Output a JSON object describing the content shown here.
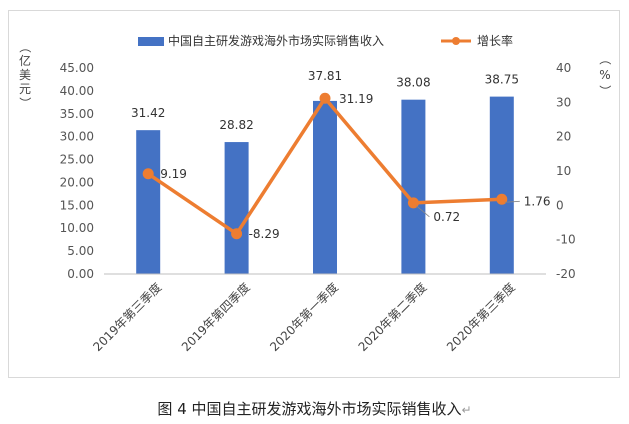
{
  "chart_data": {
    "type": "bar+line",
    "categories": [
      "2019年第三季度",
      "2019年第四季度",
      "2020年第一季度",
      "2020年第二季度",
      "2020年第三季度"
    ],
    "series": [
      {
        "name": "中国自主研发游戏海外市场实际销售收入",
        "type": "bar",
        "axis": "left",
        "values": [
          31.42,
          28.82,
          37.81,
          38.08,
          38.75
        ],
        "labels": [
          "31.42",
          "28.82",
          "37.81",
          "38.08",
          "38.75"
        ],
        "color": "#4472C4"
      },
      {
        "name": "增长率",
        "type": "line",
        "axis": "right",
        "values": [
          9.19,
          -8.29,
          31.19,
          0.72,
          1.76
        ],
        "labels": [
          "9.19",
          "-8.29",
          "31.19",
          "0.72",
          "1.76"
        ],
        "color": "#ED7D31"
      }
    ],
    "y_left": {
      "label": [
        "（",
        "亿",
        "美",
        "元",
        "）"
      ],
      "min": 0,
      "max": 45,
      "step": 5,
      "ticks": [
        "0.00",
        "5.00",
        "10.00",
        "15.00",
        "20.00",
        "25.00",
        "30.00",
        "35.00",
        "40.00",
        "45.00"
      ]
    },
    "y_right": {
      "label": [
        "（",
        "%",
        "）"
      ],
      "min": -20,
      "max": 40,
      "step": 10,
      "ticks": [
        "-20",
        "-10",
        "0",
        "10",
        "20",
        "30",
        "40"
      ]
    },
    "grid": false,
    "legend_position": "top"
  },
  "caption": "图 4  中国自主研发游戏海外市场实际销售收入",
  "caption_mark": "↵"
}
